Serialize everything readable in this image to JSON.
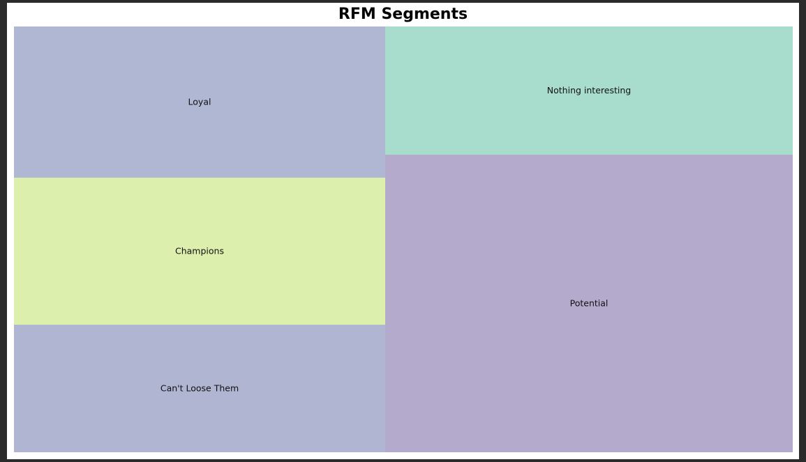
{
  "chart_data": {
    "type": "treemap",
    "title": "RFM Segments",
    "cells": [
      {
        "label": "Loyal",
        "color": "#b0b7d2"
      },
      {
        "label": "Champions",
        "color": "#dcefac"
      },
      {
        "label": "Can't Loose Them",
        "color": "#b0b5d2"
      },
      {
        "label": "Nothing interesting",
        "color": "#a8dccd"
      },
      {
        "label": "Potential",
        "color": "#b4aacb"
      }
    ]
  }
}
